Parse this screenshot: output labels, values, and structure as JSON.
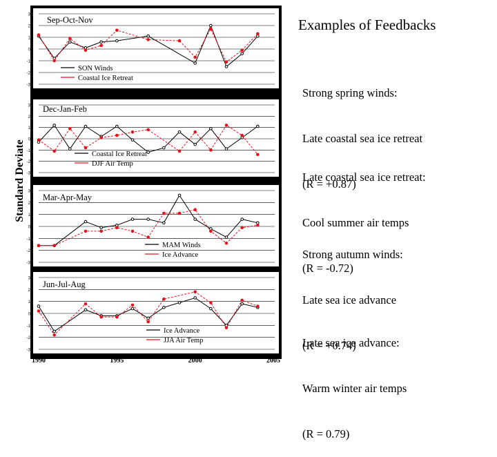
{
  "slide": {
    "title": "Examples of Feedbacks",
    "y_axis_label": "Standard Deviate",
    "captions": [
      {
        "line1": "Strong spring winds:",
        "line2": "Late coastal sea ice retreat",
        "line3": "(R = +0.87)"
      },
      {
        "line1": "Late coastal sea ice retreat:",
        "line2": "Cool summer air temps",
        "line3": "(R = -0.72)"
      },
      {
        "line1": "Strong autumn winds:",
        "line2": "Late sea ice advance",
        "line3": "(R = +0.74)"
      },
      {
        "line1": "Late sea ice advance:",
        "line2": "Warm winter air temps",
        "line3": "(R = 0.79)"
      }
    ]
  },
  "colors": {
    "black_series": "#000000",
    "red_series": "#e8101a",
    "panel_bg": "#ffffff",
    "page_bg": "#ffffff"
  },
  "chart_data": [
    {
      "type": "line",
      "title": "Sep-Oct-Nov",
      "x": [
        1990,
        1991,
        1992,
        1993,
        1994,
        1995,
        1996,
        1997,
        1998,
        1999,
        2000,
        2001,
        2002,
        2003,
        2004
      ],
      "ylim": [
        -3,
        3
      ],
      "yticks": [
        "3",
        "2",
        "1",
        "0",
        "-1",
        "-2",
        "-3"
      ],
      "legend_position": "lower-left",
      "series": [
        {
          "name": "SON Winds",
          "color": "#000000",
          "marker": "circle",
          "values": [
            1.1,
            -0.8,
            0.6,
            0.1,
            0.6,
            0.7,
            null,
            1.1,
            null,
            null,
            -1.2,
            2.0,
            -1.5,
            -0.4,
            1.1
          ]
        },
        {
          "name": "Coastal Ice Retreat",
          "color": "#e8101a",
          "marker": "circle",
          "values": [
            1.2,
            -1.0,
            0.9,
            -0.1,
            0.3,
            1.6,
            null,
            0.8,
            null,
            0.7,
            -0.7,
            1.7,
            -1.1,
            -0.1,
            1.3
          ]
        }
      ]
    },
    {
      "type": "line",
      "title": "Dec-Jan-Feb",
      "x": [
        1990,
        1991,
        1992,
        1993,
        1994,
        1995,
        1996,
        1997,
        1998,
        1999,
        2000,
        2001,
        2002,
        2003,
        2004
      ],
      "ylim": [
        -3,
        3
      ],
      "yticks": [
        "3",
        "2",
        "1",
        "0",
        "-1",
        "-2",
        "-3"
      ],
      "legend_position": "lower-left",
      "series": [
        {
          "name": "Coastal Ice Retreat",
          "color": "#000000",
          "marker": "circle",
          "values": [
            -0.3,
            1.2,
            -0.9,
            1.1,
            0.2,
            1.1,
            -0.1,
            -1.2,
            -0.8,
            0.6,
            -0.5,
            0.9,
            -0.9,
            0.1,
            1.1
          ]
        },
        {
          "name": "DJF Air Temp",
          "color": "#e8101a",
          "marker": "circle",
          "values": [
            -0.1,
            -1.1,
            0.9,
            -0.8,
            0.1,
            0.3,
            0.6,
            0.8,
            null,
            -1.1,
            0.6,
            -1.0,
            1.2,
            0.3,
            -1.4
          ]
        }
      ]
    },
    {
      "type": "line",
      "title": "Mar-Apr-May",
      "x": [
        1990,
        1991,
        1992,
        1993,
        1994,
        1995,
        1996,
        1997,
        1998,
        1999,
        2000,
        2001,
        2002,
        2003,
        2004
      ],
      "ylim": [
        -3,
        3
      ],
      "yticks": [
        "3",
        "2",
        "1",
        "0",
        "-1",
        "-2",
        "-3"
      ],
      "legend_position": "lower-right",
      "series": [
        {
          "name": "MAM Winds",
          "color": "#000000",
          "marker": "circle",
          "values": [
            -1.6,
            -1.6,
            null,
            0.4,
            -0.1,
            0.1,
            0.6,
            0.6,
            0.3,
            2.6,
            0.6,
            -0.2,
            -0.9,
            0.6,
            0.3
          ]
        },
        {
          "name": "Ice Advance",
          "color": "#e8101a",
          "marker": "circle",
          "values": [
            -1.6,
            -1.6,
            null,
            -0.4,
            -0.4,
            -0.1,
            -0.4,
            -0.9,
            1.1,
            1.1,
            1.4,
            -0.4,
            -1.4,
            -0.1,
            0.1
          ]
        }
      ]
    },
    {
      "type": "line",
      "title": "Jun-Jul-Aug",
      "x": [
        1990,
        1991,
        1992,
        1993,
        1994,
        1995,
        1996,
        1997,
        1998,
        1999,
        2000,
        2001,
        2002,
        2003,
        2004
      ],
      "ylim": [
        -3,
        3
      ],
      "yticks": [
        "3",
        "2",
        "1",
        "0",
        "-1",
        "-2",
        "-3"
      ],
      "legend_position": "bottom-center",
      "series": [
        {
          "name": "Ice Advance",
          "color": "#000000",
          "marker": "circle",
          "values": [
            0.6,
            -1.5,
            null,
            0.3,
            -0.2,
            -0.2,
            0.4,
            -0.4,
            0.5,
            0.9,
            1.3,
            0.4,
            -1.0,
            0.8,
            0.5
          ]
        },
        {
          "name": "JJA Air Temp",
          "color": "#e8101a",
          "marker": "circle",
          "values": [
            0.2,
            -1.8,
            null,
            0.8,
            -0.3,
            -0.3,
            0.7,
            -0.7,
            1.2,
            null,
            1.8,
            0.9,
            -1.2,
            1.1,
            0.6
          ]
        }
      ]
    }
  ],
  "x_axis": {
    "labels": [
      {
        "year": 1990,
        "text": "1990"
      },
      {
        "year": 1995,
        "text": "1995"
      },
      {
        "year": 2000,
        "text": "2000"
      },
      {
        "year": 2005,
        "text": "2005"
      }
    ]
  }
}
